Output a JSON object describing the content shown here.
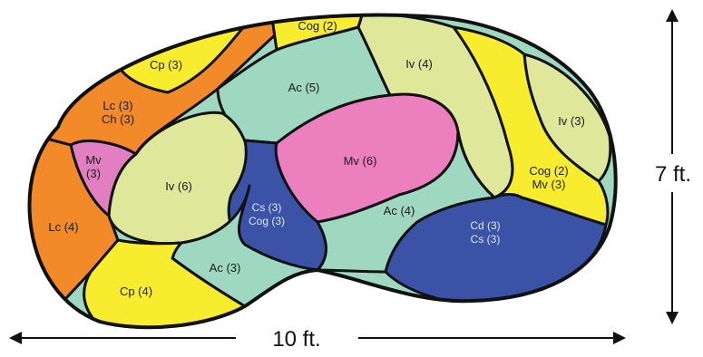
{
  "diagram": {
    "zones": [
      {
        "id": "lc4",
        "lines": [
          "Lc (4)"
        ],
        "color": "#f28a2a"
      },
      {
        "id": "mv3",
        "lines": [
          "Mv",
          "(3)"
        ],
        "color": "#e27fc0"
      },
      {
        "id": "lc3-ch3",
        "lines": [
          "Lc (3)",
          "Ch (3)"
        ],
        "color": "#f28a2a"
      },
      {
        "id": "cp3",
        "lines": [
          "Cp (3)"
        ],
        "color": "#f7ec2e"
      },
      {
        "id": "cog2-top",
        "lines": [
          "Cog (2)"
        ],
        "color": "#f7ec2e"
      },
      {
        "id": "ac5",
        "lines": [
          "Ac (5)"
        ],
        "color": "#9ed8c0"
      },
      {
        "id": "iv6",
        "lines": [
          "Iv (6)"
        ],
        "color": "#dfe79b"
      },
      {
        "id": "cs-cog",
        "lines": [
          "Cs (3)",
          "Cog (3)"
        ],
        "color": "#3a53a6"
      },
      {
        "id": "mv6",
        "lines": [
          "Mv (6)"
        ],
        "color": "#ec7fbe"
      },
      {
        "id": "iv4",
        "lines": [
          "Iv (4)"
        ],
        "color": "#dfe79b"
      },
      {
        "id": "iv3",
        "lines": [
          "Iv (3)"
        ],
        "color": "#dfe79b"
      },
      {
        "id": "cog2-mv3",
        "lines": [
          "Cog (2)",
          "Mv (3)"
        ],
        "color": "#f7ec2e"
      },
      {
        "id": "ac4",
        "lines": [
          "Ac (4)"
        ],
        "color": "#9ed8c0"
      },
      {
        "id": "cd-cs",
        "lines": [
          "Cd (3)",
          "Cs (3)"
        ],
        "color": "#3a53a6"
      },
      {
        "id": "ac3",
        "lines": [
          "Ac (3)"
        ],
        "color": "#9ed8c0"
      },
      {
        "id": "cp4",
        "lines": [
          "Cp (4)"
        ],
        "color": "#f7ec2e"
      }
    ],
    "dimension_width": "10 ft.",
    "dimension_height": "7 ft.",
    "outline_color": "#111111"
  }
}
